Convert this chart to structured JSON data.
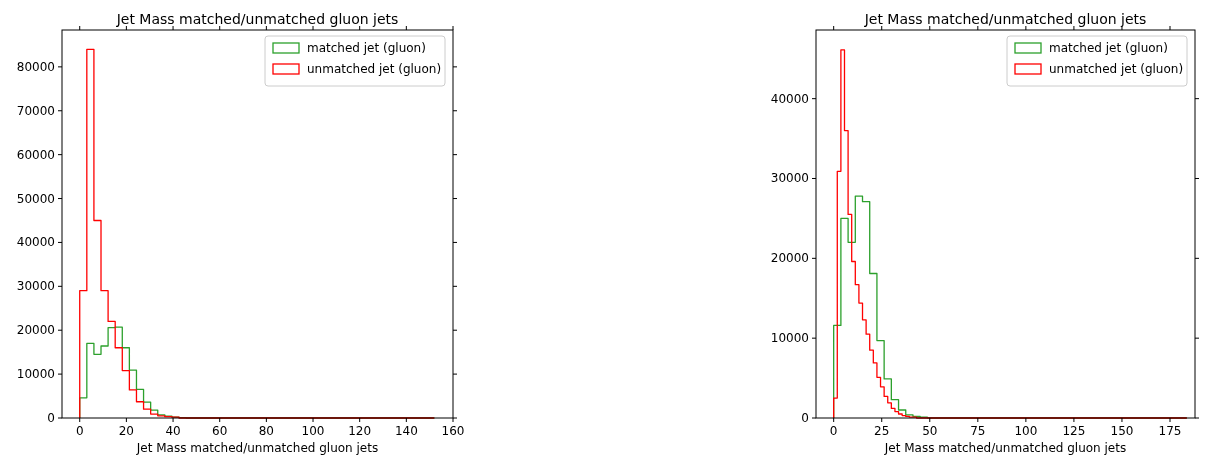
{
  "chart_data": [
    {
      "type": "histogram",
      "title": "Jet Mass matched/unmatched gluon jets",
      "xlabel": "Jet Mass matched/unmatched gluon jets",
      "legend": "top right",
      "grid": false,
      "bins": [
        0,
        3.04,
        6.08,
        9.12,
        12.16,
        15.2,
        18.24,
        21.28,
        24.32,
        27.36,
        30.4,
        33.44,
        36.48,
        39.52,
        42.56,
        45.6,
        48.64,
        51.68,
        54.72,
        57.76,
        60.8,
        63.84,
        66.88,
        69.92,
        72.96,
        76,
        79.04,
        82.08,
        85.12,
        88.16,
        91.2,
        94.24,
        97.28,
        100.32,
        103.36,
        106.4,
        109.44,
        112.48,
        115.52,
        118.56,
        121.6,
        124.64,
        127.68,
        130.72,
        133.76,
        136.8,
        139.84,
        142.88,
        145.92,
        148.96,
        152
      ],
      "xlim": [
        -7.6,
        160
      ],
      "xticks": [
        0,
        20,
        40,
        60,
        80,
        100,
        120,
        140,
        160
      ],
      "ylim": [
        0,
        88400
      ],
      "yticks": [
        0,
        10000,
        20000,
        30000,
        40000,
        50000,
        60000,
        70000,
        80000
      ],
      "series": [
        {
          "name": "matched jet (gluon)",
          "color": "#2ca02c",
          "values": [
            4600,
            17000,
            14500,
            16400,
            20600,
            20700,
            16000,
            10900,
            6500,
            3600,
            1800,
            700,
            400,
            200,
            100,
            0,
            0,
            0,
            0,
            0,
            0,
            0,
            0,
            0,
            0,
            0,
            0,
            0,
            0,
            0,
            0,
            0,
            0,
            0,
            0,
            0,
            0,
            0,
            0,
            0,
            0,
            0,
            0,
            0,
            0,
            0,
            0,
            0,
            0,
            0
          ]
        },
        {
          "name": "unmatched jet (gluon)",
          "color": "#ff0000",
          "values": [
            29000,
            84000,
            45000,
            29000,
            22000,
            16000,
            10800,
            6400,
            3700,
            2000,
            900,
            500,
            300,
            200,
            0,
            0,
            0,
            0,
            0,
            0,
            0,
            0,
            0,
            0,
            0,
            0,
            0,
            0,
            0,
            0,
            0,
            0,
            0,
            0,
            0,
            0,
            0,
            0,
            0,
            0,
            0,
            0,
            0,
            0,
            0,
            0,
            0,
            0,
            0,
            0
          ]
        }
      ]
    },
    {
      "type": "histogram",
      "title": "Jet Mass matched/unmatched gluon jets",
      "xlabel": "Jet Mass matched/unmatched gluon jets",
      "legend": "top right",
      "grid": false,
      "bins": [
        0,
        1.875,
        3.75,
        5.625,
        7.5,
        9.375,
        11.25,
        13.125,
        15,
        16.875,
        18.75,
        20.625,
        22.5,
        24.375,
        26.25,
        28.125,
        30,
        31.875,
        33.75,
        35.625,
        37.5,
        39.375,
        41.25,
        43.125,
        45,
        46.875,
        48.75,
        50.625,
        52.5,
        54.375,
        56.25,
        58.125,
        60,
        61.875,
        63.75,
        65.625,
        67.5,
        69.375,
        71.25,
        73.125,
        75,
        76.875,
        78.75,
        80.625,
        82.5,
        84.375,
        86.25,
        88.125,
        90,
        91.875,
        93.75,
        95.625,
        97.5,
        99.375,
        101.25,
        103.125,
        105,
        106.875,
        108.75,
        110.625,
        112.5,
        114.375,
        116.25,
        118.125,
        120,
        121.875,
        123.75,
        125.625,
        127.5,
        129.375,
        131.25,
        133.125,
        135,
        136.875,
        138.75,
        140.625,
        142.5,
        144.375,
        146.25,
        148.125,
        150,
        151.875,
        153.75,
        155.625,
        157.5,
        159.375,
        161.25,
        163.125,
        165,
        166.875,
        168.75,
        170.625,
        172.5,
        174.375,
        176.25,
        178.125,
        180,
        181.875,
        183.75
      ],
      "xlim": [
        -9.2,
        188
      ],
      "xticks": [
        0,
        25,
        50,
        75,
        100,
        125,
        150,
        175
      ],
      "ylim": [
        0,
        48600
      ],
      "yticks": [
        0,
        10000,
        20000,
        30000,
        40000
      ],
      "series": [
        {
          "name": "matched jet (gluon)",
          "color": "#2ca02c",
          "values": [
            11600,
            11600,
            25000,
            25000,
            22000,
            22000,
            27800,
            27800,
            27100,
            27100,
            18100,
            18100,
            9700,
            9700,
            4900,
            4900,
            2300,
            2300,
            1000,
            1000,
            400,
            400,
            200,
            200,
            100,
            100,
            0,
            0,
            0,
            0,
            0,
            0,
            0,
            0,
            0,
            0,
            0,
            0,
            0,
            0,
            0,
            0,
            0,
            0,
            0,
            0,
            0,
            0,
            0,
            0,
            0,
            0,
            0,
            0,
            0,
            0,
            0,
            0,
            0,
            0,
            0,
            0,
            0,
            0,
            0,
            0,
            0,
            0,
            0,
            0,
            0,
            0,
            0,
            0,
            0,
            0,
            0,
            0,
            0,
            0,
            0,
            0,
            0,
            0,
            0,
            0,
            0,
            0,
            0,
            0,
            0,
            0,
            0,
            0,
            0,
            0,
            0,
            0
          ]
        },
        {
          "name": "unmatched jet (gluon)",
          "color": "#ff0000",
          "values": [
            2500,
            30900,
            46100,
            36000,
            25500,
            19600,
            16700,
            14400,
            12300,
            10500,
            8500,
            6900,
            5100,
            3900,
            2700,
            1900,
            1200,
            800,
            500,
            300,
            200,
            100,
            100,
            0,
            0,
            0,
            0,
            0,
            0,
            0,
            0,
            0,
            0,
            0,
            0,
            0,
            0,
            0,
            0,
            0,
            0,
            0,
            0,
            0,
            0,
            0,
            0,
            0,
            0,
            0,
            0,
            0,
            0,
            0,
            0,
            0,
            0,
            0,
            0,
            0,
            0,
            0,
            0,
            0,
            0,
            0,
            0,
            0,
            0,
            0,
            0,
            0,
            0,
            0,
            0,
            0,
            0,
            0,
            0,
            0,
            0,
            0,
            0,
            0,
            0,
            0,
            0,
            0,
            0,
            0,
            0,
            0,
            0,
            0,
            0,
            0,
            0,
            0
          ]
        }
      ]
    }
  ]
}
